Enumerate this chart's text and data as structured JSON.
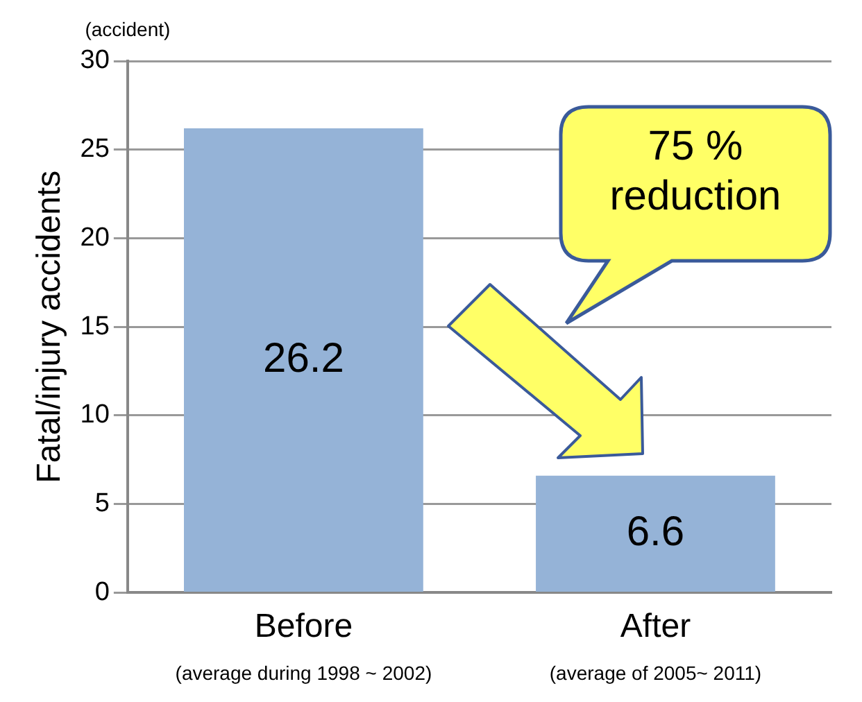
{
  "chart_data": {
    "type": "bar",
    "ylabel": "Fatal/injury accidents",
    "categories": [
      "Before",
      "After"
    ],
    "values": [
      26.2,
      6.6
    ],
    "color": "#95b3d7",
    "ylim": [
      0,
      30
    ],
    "yticks": [
      0,
      5,
      10,
      15,
      20,
      25,
      30
    ],
    "grid": "y",
    "data_labels": true,
    "legend": false,
    "annotations": [
      "(accident)",
      "(average during 1998 ~ 2002)",
      "(average of 2005~ 2011)",
      "75 % reduction"
    ]
  }
}
